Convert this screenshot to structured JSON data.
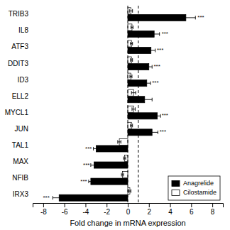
{
  "chart_data": {
    "type": "bar",
    "orientation": "horizontal",
    "categories": [
      "TRIB3",
      "IL8",
      "ATF3",
      "DDIT3",
      "ID3",
      "ELL2",
      "MYCL1",
      "JUN",
      "TAL1",
      "MAX",
      "NFIB",
      "IRX3"
    ],
    "series": [
      {
        "name": "Anagrelide",
        "color": "#000000",
        "values": [
          5.5,
          2.5,
          2.2,
          2.0,
          1.8,
          1.6,
          2.8,
          2.3,
          -3.0,
          -3.2,
          -3.5,
          -6.5
        ],
        "errors": [
          0.9,
          0.5,
          0.4,
          0.3,
          0.35,
          0.7,
          0.3,
          0.55,
          0.25,
          0.3,
          0.2,
          0.6
        ]
      },
      {
        "name": "Cilostamide",
        "color": "#ffffff",
        "values": [
          0.3,
          0.4,
          0.35,
          0.35,
          0.3,
          0.55,
          0.55,
          0.35,
          -0.8,
          -0.3,
          -0.5,
          0.2
        ],
        "errors": [
          0.15,
          0.1,
          0.1,
          0.1,
          0.1,
          0.2,
          0.15,
          0.1,
          0.15,
          0.1,
          0.1,
          0.1
        ]
      }
    ],
    "annotations": [
      {
        "text": "***",
        "x": 6.6,
        "category": "TRIB3",
        "series": "Anagrelide"
      },
      {
        "text": "***",
        "x": 3.2,
        "category": "IL8",
        "series": "Anagrelide"
      },
      {
        "text": "***",
        "x": 2.75,
        "category": "ATF3",
        "series": "Anagrelide"
      },
      {
        "text": "***",
        "x": 2.45,
        "category": "DDIT3",
        "series": "Anagrelide"
      },
      {
        "text": "***",
        "x": 2.3,
        "category": "ID3",
        "series": "Anagrelide"
      },
      {
        "text": "***",
        "x": 3.2,
        "category": "MYCL1",
        "series": "Anagrelide"
      },
      {
        "text": "***",
        "x": 3.0,
        "category": "JUN",
        "series": "Anagrelide"
      },
      {
        "text": "***",
        "x": -3.4,
        "category": "TAL1",
        "series": "Anagrelide"
      },
      {
        "text": "***",
        "x": -3.6,
        "category": "MAX",
        "series": "Anagrelide"
      },
      {
        "text": "***",
        "x": -3.85,
        "category": "NFIB",
        "series": "Anagrelide"
      },
      {
        "text": "***",
        "x": -7.4,
        "category": "IRX3",
        "series": "Anagrelide"
      }
    ],
    "vlines": [
      0,
      1
    ],
    "xlabel": "Fold change in mRNA expression",
    "xlim": [
      -9,
      9
    ],
    "xticks": [
      -8,
      -6,
      -4,
      -2,
      0,
      2,
      4,
      6,
      8
    ],
    "legend": "lower right"
  }
}
